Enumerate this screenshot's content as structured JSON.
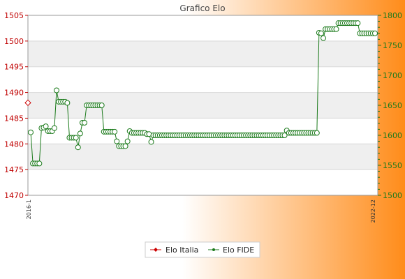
{
  "chart_data": {
    "type": "line",
    "title": "Grafico Elo",
    "legend_placement": "bottom-center",
    "grid": true,
    "colors": {
      "elo_italia": "#cc0000",
      "elo_fide": "#1b7a1b",
      "bg_gradient_start": "#ffffff",
      "bg_gradient_end": "#ff8c1a"
    },
    "left_axis": {
      "ylim": [
        1470,
        1505
      ],
      "ticks": [
        1470,
        1475,
        1480,
        1485,
        1490,
        1495,
        1500,
        1505
      ]
    },
    "right_axis": {
      "ylim": [
        1500,
        1800
      ],
      "ticks": [
        1500,
        1550,
        1600,
        1650,
        1700,
        1750,
        1800
      ]
    },
    "x_date_labels": [
      "2016-1",
      "2022-12"
    ],
    "series": [
      {
        "name": "Elo Italia",
        "axis": "left",
        "marker": "diamond",
        "values": [
          1488
        ]
      },
      {
        "name": "Elo FIDE",
        "axis": "right",
        "marker": "circle",
        "values": [
          1605,
          1553,
          1553,
          1553,
          1553,
          1612,
          1613,
          1615,
          1607,
          1607,
          1607,
          1612,
          1675,
          1656,
          1656,
          1656,
          1656,
          1654,
          1596,
          1596,
          1596,
          1596,
          1580,
          1603,
          1621,
          1621,
          1650,
          1650,
          1650,
          1650,
          1650,
          1650,
          1650,
          1650,
          1606,
          1606,
          1606,
          1606,
          1606,
          1606,
          1590,
          1582,
          1582,
          1582,
          1582,
          1590,
          1607,
          1604,
          1604,
          1604,
          1604,
          1604,
          1604,
          1604,
          1602,
          1602,
          1589,
          1600,
          1600,
          1600,
          1600,
          1600,
          1600,
          1600,
          1600,
          1600,
          1600,
          1600,
          1600,
          1600,
          1600,
          1600,
          1600,
          1600,
          1600,
          1600,
          1600,
          1600,
          1600,
          1600,
          1600,
          1600,
          1600,
          1600,
          1600,
          1600,
          1600,
          1600,
          1600,
          1600,
          1600,
          1600,
          1600,
          1600,
          1600,
          1600,
          1600,
          1600,
          1600,
          1600,
          1600,
          1600,
          1600,
          1600,
          1600,
          1600,
          1600,
          1600,
          1600,
          1600,
          1600,
          1600,
          1600,
          1600,
          1600,
          1600,
          1600,
          1600,
          1600,
          1608,
          1604,
          1604,
          1604,
          1604,
          1604,
          1604,
          1604,
          1604,
          1604,
          1604,
          1604,
          1604,
          1604,
          1604,
          1771,
          1770,
          1762,
          1777,
          1777,
          1777,
          1777,
          1777,
          1777,
          1787,
          1787,
          1787,
          1787,
          1787,
          1787,
          1787,
          1787,
          1787,
          1787,
          1770,
          1770,
          1770,
          1770,
          1770,
          1770,
          1770,
          1770
        ]
      }
    ]
  }
}
